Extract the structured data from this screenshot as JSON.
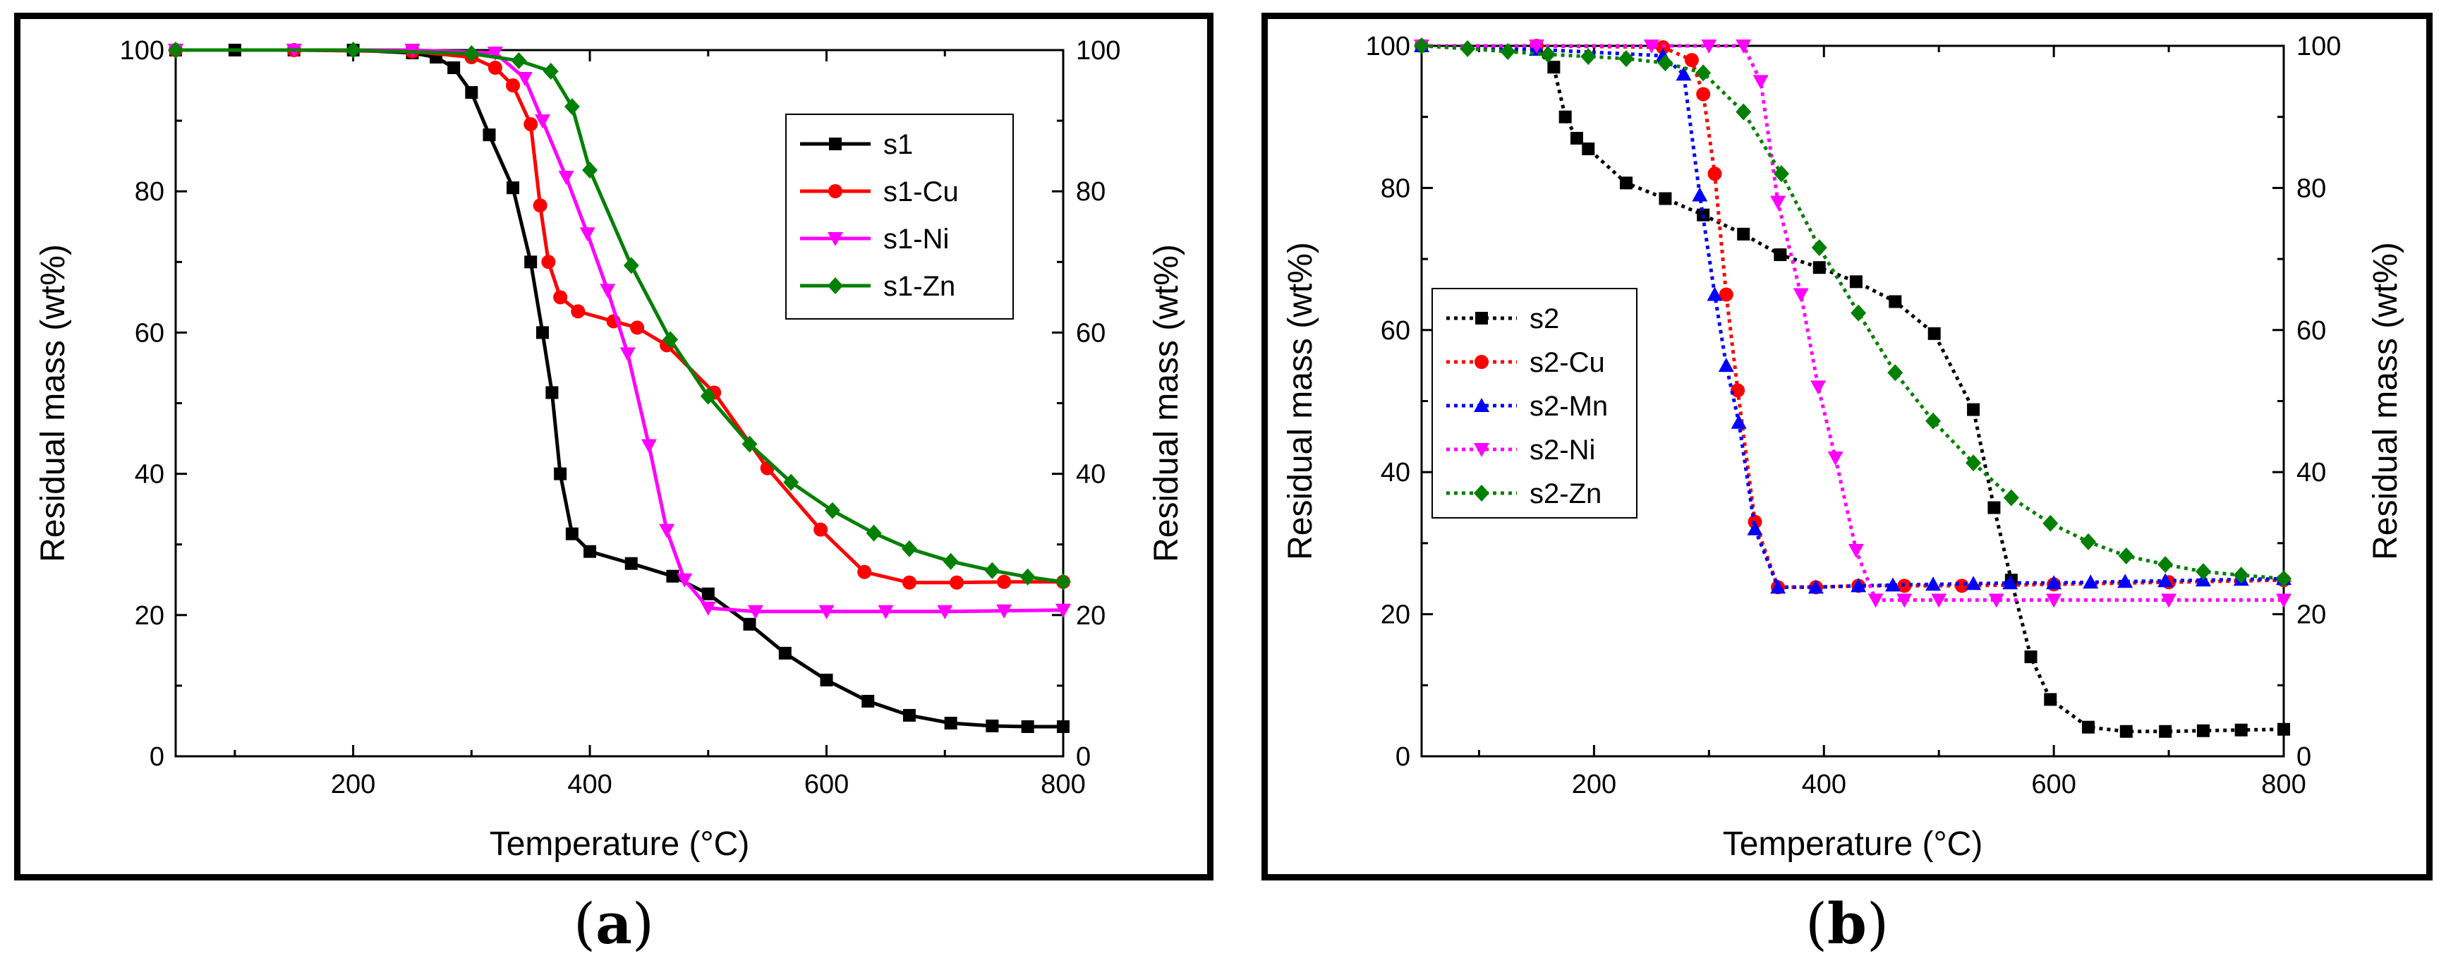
{
  "captions": {
    "a": "a",
    "b": "b"
  },
  "chart_data": [
    {
      "type": "line",
      "panel": "a",
      "xlabel": "Temperature (°C)",
      "ylabel": "Residual mass (wt%)",
      "ylabel_right": "Residual mass (wt%)",
      "xlim": [
        50,
        800
      ],
      "ylim": [
        0,
        100
      ],
      "x_ticks": [
        200,
        400,
        600,
        800
      ],
      "y_ticks": [
        0,
        20,
        40,
        60,
        80,
        100
      ],
      "line_style": "solid",
      "legend_position": "top-right",
      "series": [
        {
          "name": "s1",
          "color": "#000000",
          "marker": "square",
          "x": [
            50,
            100,
            150,
            200,
            250,
            270,
            285,
            300,
            315,
            335,
            350,
            360,
            368,
            375,
            385,
            400,
            435,
            470,
            500,
            535,
            565,
            600,
            635,
            670,
            705,
            740,
            770,
            800
          ],
          "y": [
            100,
            100,
            100,
            100,
            99.6,
            99,
            97.5,
            94,
            88,
            80.5,
            70,
            60,
            51.5,
            40,
            31.5,
            29,
            27.3,
            25.5,
            23,
            18.7,
            14.6,
            10.8,
            7.8,
            5.8,
            4.7,
            4.3,
            4.2,
            4.2
          ]
        },
        {
          "name": "s1-Cu",
          "color": "#ff0000",
          "marker": "circle",
          "x": [
            50,
            150,
            250,
            300,
            320,
            335,
            350,
            358,
            365,
            375,
            390,
            420,
            440,
            465,
            505,
            550,
            595,
            632,
            670,
            710,
            750,
            800
          ],
          "y": [
            100,
            100,
            99.8,
            99,
            97.5,
            95,
            89.5,
            78,
            70,
            65,
            63,
            61.6,
            60.7,
            58.2,
            51.5,
            40.8,
            32.1,
            26.1,
            24.6,
            24.6,
            24.7,
            24.7
          ]
        },
        {
          "name": "s1-Ni",
          "color": "#ff00ff",
          "marker": "triangle-down",
          "x": [
            50,
            150,
            250,
            320,
            345,
            360,
            380,
            398,
            415,
            432,
            450,
            465,
            480,
            500,
            540,
            600,
            650,
            700,
            750,
            800
          ],
          "y": [
            100,
            100,
            100,
            99.6,
            96,
            90,
            82,
            74,
            66,
            57,
            44,
            32,
            25,
            21,
            20.5,
            20.5,
            20.5,
            20.5,
            20.6,
            20.7
          ]
        },
        {
          "name": "s1-Zn",
          "color": "#008000",
          "marker": "diamond",
          "x": [
            50,
            200,
            300,
            340,
            367,
            385,
            400,
            435,
            468,
            500,
            535,
            570,
            605,
            640,
            670,
            705,
            740,
            770,
            800
          ],
          "y": [
            100,
            100,
            99.5,
            98.5,
            97,
            92,
            83,
            69.5,
            59,
            51,
            44.2,
            38.8,
            34.8,
            31.6,
            29.4,
            27.6,
            26.3,
            25.4,
            24.7
          ]
        }
      ]
    },
    {
      "type": "line",
      "panel": "b",
      "xlabel": "Temperature (°C)",
      "ylabel": "Residual mass (wt%)",
      "ylabel_right": "Residual mass (wt%)",
      "xlim": [
        50,
        800
      ],
      "ylim": [
        0,
        100
      ],
      "x_ticks": [
        200,
        400,
        600,
        800
      ],
      "y_ticks": [
        0,
        20,
        40,
        60,
        80,
        100
      ],
      "line_style": "dotted",
      "legend_position": "middle-left",
      "series": [
        {
          "name": "s2",
          "color": "#000000",
          "marker": "square",
          "x": [
            50,
            150,
            165,
            175,
            185,
            195,
            228,
            262,
            295,
            330,
            362,
            396,
            428,
            462,
            496,
            530,
            548,
            563,
            580,
            597,
            630,
            663,
            697,
            730,
            763,
            800
          ],
          "y": [
            100,
            99.5,
            97,
            90,
            87,
            85.5,
            80.7,
            78.5,
            76.2,
            73.5,
            70.6,
            68.8,
            66.8,
            64,
            59.5,
            48.8,
            35,
            24.8,
            14,
            8,
            4.1,
            3.5,
            3.5,
            3.6,
            3.7,
            3.8
          ]
        },
        {
          "name": "s2-Cu",
          "color": "#ff0000",
          "marker": "circle",
          "x": [
            50,
            150,
            260,
            285,
            295,
            305,
            315,
            325,
            340,
            360,
            393,
            430,
            470,
            520,
            600,
            700,
            800
          ],
          "y": [
            100,
            100,
            99.8,
            98,
            93.2,
            82,
            65,
            51.5,
            33,
            23.8,
            23.8,
            24,
            24,
            24,
            24.2,
            24.5,
            24.8
          ]
        },
        {
          "name": "s2-Mn",
          "color": "#0000ff",
          "marker": "triangle-up",
          "x": [
            50,
            150,
            260,
            278,
            292,
            305,
            315,
            326,
            340,
            360,
            393,
            430,
            460,
            495,
            530,
            562,
            600,
            632,
            662,
            697,
            730,
            763,
            800
          ],
          "y": [
            100,
            99.5,
            98.6,
            96,
            79,
            65,
            55,
            47,
            32,
            23.8,
            23.8,
            24,
            24.1,
            24.2,
            24.3,
            24.4,
            24.4,
            24.5,
            24.6,
            24.7,
            24.8,
            24.9,
            25
          ]
        },
        {
          "name": "s2-Ni",
          "color": "#ff00ff",
          "marker": "triangle-down",
          "x": [
            50,
            150,
            250,
            300,
            330,
            345,
            360,
            380,
            395,
            410,
            428,
            445,
            470,
            500,
            550,
            600,
            700,
            800
          ],
          "y": [
            100,
            100,
            100,
            100,
            100,
            95,
            78,
            65,
            52,
            42,
            29,
            22,
            22,
            22,
            22,
            22,
            22,
            22
          ]
        },
        {
          "name": "s2-Zn",
          "color": "#008000",
          "marker": "diamond",
          "x": [
            50,
            90,
            125,
            160,
            195,
            228,
            262,
            295,
            330,
            363,
            396,
            430,
            462,
            495,
            530,
            563,
            597,
            630,
            663,
            697,
            730,
            763,
            800
          ],
          "y": [
            100,
            99.6,
            99.2,
            98.8,
            98.5,
            98.2,
            97.6,
            96.2,
            90.7,
            82,
            71.6,
            62.4,
            54,
            47.2,
            41.3,
            36.4,
            32.8,
            30.2,
            28.2,
            27,
            26,
            25.5,
            25
          ]
        }
      ]
    }
  ]
}
